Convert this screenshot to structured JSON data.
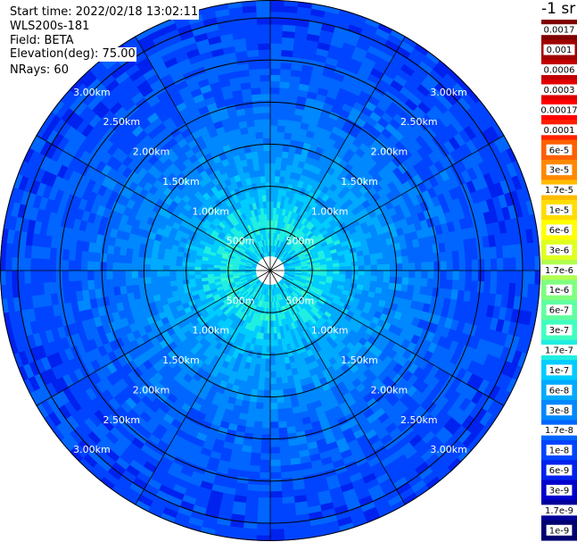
{
  "header": {
    "start_time": "Start time: 2022/02/18 13:02:11",
    "instrument": "WLS200s-181",
    "field": "Field: BETA",
    "elevation": "Elevation(deg): 75.00",
    "nrays": "NRays: 60"
  },
  "unit_label": "-1 sr",
  "chart_data": {
    "type": "heatmap",
    "projection": "polar",
    "field": "BETA",
    "n_rays": 60,
    "range_unit": "km",
    "range_ring_labels": [
      "500m",
      "1.00km",
      "1.50km",
      "2.00km",
      "2.50km",
      "3.00km"
    ],
    "colorbar": {
      "labels": [
        "0.0017",
        "0.001",
        "0.0006",
        "0.0003",
        "0.00017",
        "0.0001",
        "6e-5",
        "3e-5",
        "1.7e-5",
        "1e-5",
        "6e-6",
        "3e-6",
        "1.7e-6",
        "1e-6",
        "6e-7",
        "3e-7",
        "1.7e-7",
        "1e-7",
        "6e-8",
        "3e-8",
        "1.7e-8",
        "1e-8",
        "6e-9",
        "3e-9",
        "1.7e-9",
        "1e-9"
      ],
      "colors": [
        "#800000",
        "#a00000",
        "#c00000",
        "#e00000",
        "#ff0000",
        "#ff2000",
        "#ff6000",
        "#ff8800",
        "#ffbb00",
        "#ffdd00",
        "#ffff00",
        "#e0ff20",
        "#b0ff50",
        "#80ff80",
        "#60ffa0",
        "#40ffc0",
        "#20eee0",
        "#00ccff",
        "#00aaff",
        "#0088ff",
        "#0066ff",
        "#0044ff",
        "#0022ee",
        "#0000cc",
        "#000099",
        "#000070"
      ]
    },
    "radial_profile": [
      {
        "range_km": 0.25,
        "value": "1e-7"
      },
      {
        "range_km": 0.5,
        "value": "1.7e-7"
      },
      {
        "range_km": 1.0,
        "value": "6e-8"
      },
      {
        "range_km": 1.5,
        "value": "3e-8"
      },
      {
        "range_km": 2.0,
        "value": "1.7e-8"
      },
      {
        "range_km": 3.0,
        "value": "1e-8"
      }
    ]
  }
}
